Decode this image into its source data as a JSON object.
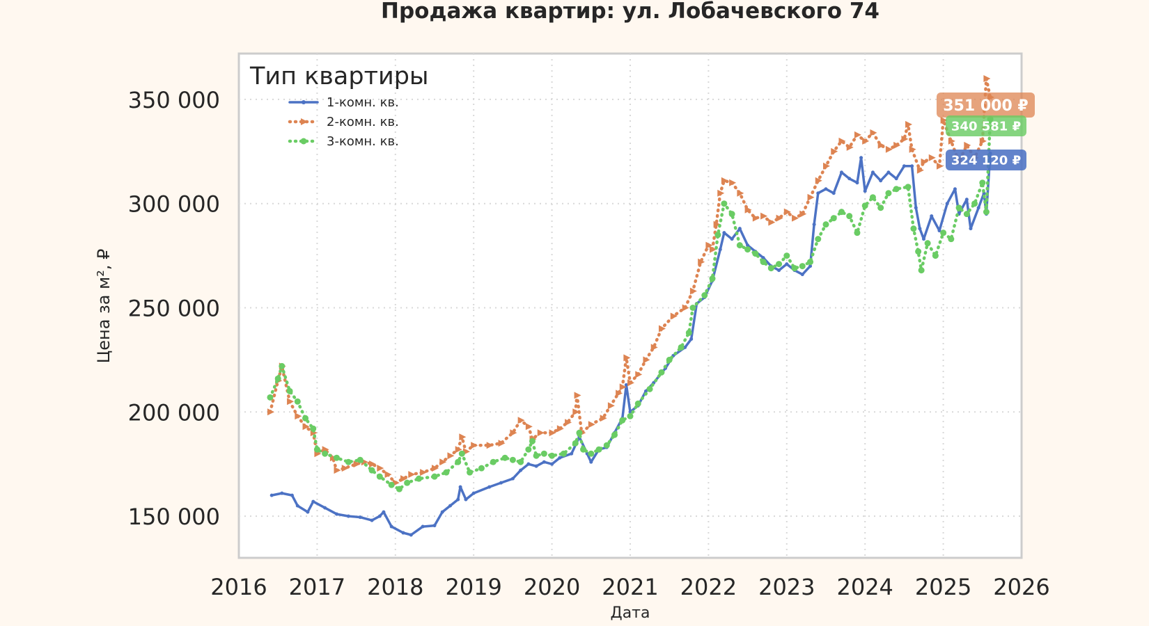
{
  "chart_data": {
    "type": "line",
    "title": "Продажа квартир: ул. Лобачевского 74",
    "xlabel": "Дата",
    "ylabel": "Цена за м², ₽",
    "xlim": [
      2016.0,
      2026.0
    ],
    "ylim": [
      130000,
      372000
    ],
    "x_ticks": [
      2016,
      2017,
      2018,
      2019,
      2020,
      2021,
      2022,
      2023,
      2024,
      2025,
      2026
    ],
    "x_tick_labels": [
      "2016",
      "2017",
      "2018",
      "2019",
      "2020",
      "2021",
      "2022",
      "2023",
      "2024",
      "2025",
      "2026"
    ],
    "y_ticks": [
      150000,
      200000,
      250000,
      300000,
      350000
    ],
    "y_tick_labels": [
      "150 000",
      "200 000",
      "250 000",
      "300 000",
      "350 000"
    ],
    "grid": true,
    "legend": {
      "title": "Тип квартиры",
      "position": "top-left"
    },
    "series": [
      {
        "name": "1-комн. кв.",
        "color": "#4c72c4",
        "style": "solid",
        "marker": "dot",
        "end_label": "324 120 ₽",
        "points": [
          [
            2016.42,
            160000
          ],
          [
            2016.55,
            161000
          ],
          [
            2016.68,
            160000
          ],
          [
            2016.75,
            155000
          ],
          [
            2016.88,
            152000
          ],
          [
            2016.95,
            157000
          ],
          [
            2017.1,
            154000
          ],
          [
            2017.25,
            151000
          ],
          [
            2017.4,
            150000
          ],
          [
            2017.55,
            149500
          ],
          [
            2017.7,
            148000
          ],
          [
            2017.8,
            150000
          ],
          [
            2017.85,
            152000
          ],
          [
            2017.95,
            145000
          ],
          [
            2018.1,
            142000
          ],
          [
            2018.2,
            141000
          ],
          [
            2018.35,
            145000
          ],
          [
            2018.5,
            145500
          ],
          [
            2018.6,
            152000
          ],
          [
            2018.7,
            155000
          ],
          [
            2018.8,
            158000
          ],
          [
            2018.83,
            164000
          ],
          [
            2018.9,
            158000
          ],
          [
            2019.0,
            161000
          ],
          [
            2019.2,
            164000
          ],
          [
            2019.35,
            166000
          ],
          [
            2019.5,
            168000
          ],
          [
            2019.6,
            172000
          ],
          [
            2019.7,
            175000
          ],
          [
            2019.8,
            174000
          ],
          [
            2019.9,
            176000
          ],
          [
            2020.0,
            175000
          ],
          [
            2020.1,
            178000
          ],
          [
            2020.25,
            180000
          ],
          [
            2020.35,
            188000
          ],
          [
            2020.45,
            180000
          ],
          [
            2020.5,
            176000
          ],
          [
            2020.6,
            182000
          ],
          [
            2020.7,
            183000
          ],
          [
            2020.8,
            190000
          ],
          [
            2020.9,
            197000
          ],
          [
            2020.95,
            213000
          ],
          [
            2021.0,
            200000
          ],
          [
            2021.1,
            203000
          ],
          [
            2021.2,
            210000
          ],
          [
            2021.3,
            214000
          ],
          [
            2021.45,
            221000
          ],
          [
            2021.55,
            227000
          ],
          [
            2021.7,
            231000
          ],
          [
            2021.78,
            235000
          ],
          [
            2021.85,
            252000
          ],
          [
            2021.95,
            255000
          ],
          [
            2022.05,
            263000
          ],
          [
            2022.15,
            278000
          ],
          [
            2022.2,
            286000
          ],
          [
            2022.3,
            283000
          ],
          [
            2022.4,
            288000
          ],
          [
            2022.5,
            280000
          ],
          [
            2022.6,
            277000
          ],
          [
            2022.7,
            274000
          ],
          [
            2022.8,
            270000
          ],
          [
            2022.9,
            268000
          ],
          [
            2023.0,
            271000
          ],
          [
            2023.1,
            268000
          ],
          [
            2023.2,
            266000
          ],
          [
            2023.3,
            270000
          ],
          [
            2023.35,
            290000
          ],
          [
            2023.4,
            305000
          ],
          [
            2023.5,
            307000
          ],
          [
            2023.6,
            305000
          ],
          [
            2023.7,
            315000
          ],
          [
            2023.8,
            312000
          ],
          [
            2023.9,
            310000
          ],
          [
            2023.95,
            322000
          ],
          [
            2024.0,
            306000
          ],
          [
            2024.1,
            315000
          ],
          [
            2024.2,
            311000
          ],
          [
            2024.3,
            315000
          ],
          [
            2024.4,
            312000
          ],
          [
            2024.5,
            318000
          ],
          [
            2024.6,
            318000
          ],
          [
            2024.65,
            298000
          ],
          [
            2024.7,
            288000
          ],
          [
            2024.75,
            283000
          ],
          [
            2024.85,
            294000
          ],
          [
            2024.95,
            287000
          ],
          [
            2025.05,
            300000
          ],
          [
            2025.15,
            307000
          ],
          [
            2025.2,
            295000
          ],
          [
            2025.3,
            302000
          ],
          [
            2025.35,
            288000
          ],
          [
            2025.45,
            298000
          ],
          [
            2025.52,
            305000
          ],
          [
            2025.55,
            295000
          ],
          [
            2025.6,
            324120
          ]
        ]
      },
      {
        "name": "2-комн. кв.",
        "color": "#dd8452",
        "style": "dotted",
        "marker": "triangle",
        "end_label": "351 000 ₽",
        "points": [
          [
            2016.4,
            200000
          ],
          [
            2016.5,
            215000
          ],
          [
            2016.55,
            222000
          ],
          [
            2016.65,
            205000
          ],
          [
            2016.75,
            198000
          ],
          [
            2016.85,
            193000
          ],
          [
            2016.95,
            190000
          ],
          [
            2017.0,
            180000
          ],
          [
            2017.1,
            182000
          ],
          [
            2017.2,
            178000
          ],
          [
            2017.25,
            172000
          ],
          [
            2017.35,
            173000
          ],
          [
            2017.5,
            175000
          ],
          [
            2017.6,
            176000
          ],
          [
            2017.7,
            175000
          ],
          [
            2017.8,
            173000
          ],
          [
            2017.9,
            170000
          ],
          [
            2018.0,
            166000
          ],
          [
            2018.1,
            168000
          ],
          [
            2018.2,
            170000
          ],
          [
            2018.35,
            171000
          ],
          [
            2018.5,
            173000
          ],
          [
            2018.6,
            176000
          ],
          [
            2018.7,
            179000
          ],
          [
            2018.8,
            182000
          ],
          [
            2018.85,
            188000
          ],
          [
            2018.9,
            181000
          ],
          [
            2019.0,
            184000
          ],
          [
            2019.2,
            184000
          ],
          [
            2019.35,
            185000
          ],
          [
            2019.5,
            190000
          ],
          [
            2019.6,
            196000
          ],
          [
            2019.7,
            193000
          ],
          [
            2019.75,
            187000
          ],
          [
            2019.85,
            190000
          ],
          [
            2020.0,
            190000
          ],
          [
            2020.1,
            192000
          ],
          [
            2020.2,
            195000
          ],
          [
            2020.3,
            200000
          ],
          [
            2020.32,
            208000
          ],
          [
            2020.38,
            190000
          ],
          [
            2020.5,
            194000
          ],
          [
            2020.65,
            197000
          ],
          [
            2020.75,
            203000
          ],
          [
            2020.85,
            209000
          ],
          [
            2020.9,
            212000
          ],
          [
            2020.95,
            226000
          ],
          [
            2021.0,
            214000
          ],
          [
            2021.1,
            218000
          ],
          [
            2021.2,
            225000
          ],
          [
            2021.3,
            231000
          ],
          [
            2021.4,
            240000
          ],
          [
            2021.55,
            246000
          ],
          [
            2021.7,
            250000
          ],
          [
            2021.8,
            258000
          ],
          [
            2021.9,
            272000
          ],
          [
            2022.0,
            280000
          ],
          [
            2022.05,
            278000
          ],
          [
            2022.1,
            290000
          ],
          [
            2022.15,
            305000
          ],
          [
            2022.2,
            311000
          ],
          [
            2022.3,
            310000
          ],
          [
            2022.4,
            305000
          ],
          [
            2022.5,
            297000
          ],
          [
            2022.6,
            293000
          ],
          [
            2022.7,
            294000
          ],
          [
            2022.8,
            291000
          ],
          [
            2022.9,
            293000
          ],
          [
            2023.0,
            296000
          ],
          [
            2023.1,
            293000
          ],
          [
            2023.2,
            295000
          ],
          [
            2023.3,
            303000
          ],
          [
            2023.4,
            311000
          ],
          [
            2023.5,
            318000
          ],
          [
            2023.6,
            325000
          ],
          [
            2023.7,
            330000
          ],
          [
            2023.8,
            327000
          ],
          [
            2023.9,
            333000
          ],
          [
            2024.0,
            330000
          ],
          [
            2024.1,
            334000
          ],
          [
            2024.2,
            328000
          ],
          [
            2024.3,
            326000
          ],
          [
            2024.4,
            328000
          ],
          [
            2024.5,
            331000
          ],
          [
            2024.55,
            338000
          ],
          [
            2024.6,
            326000
          ],
          [
            2024.7,
            316000
          ],
          [
            2024.75,
            320000
          ],
          [
            2024.85,
            322000
          ],
          [
            2024.95,
            318000
          ],
          [
            2025.0,
            340000
          ],
          [
            2025.1,
            330000
          ],
          [
            2025.2,
            320000
          ],
          [
            2025.3,
            328000
          ],
          [
            2025.4,
            322000
          ],
          [
            2025.5,
            330000
          ],
          [
            2025.55,
            360000
          ],
          [
            2025.6,
            351000
          ]
        ]
      },
      {
        "name": "3-комн. кв.",
        "color": "#6acc64",
        "style": "dotted",
        "marker": "circle",
        "end_label": "340 581 ₽",
        "points": [
          [
            2016.4,
            207000
          ],
          [
            2016.5,
            216000
          ],
          [
            2016.55,
            222000
          ],
          [
            2016.65,
            210000
          ],
          [
            2016.75,
            205000
          ],
          [
            2016.85,
            197000
          ],
          [
            2016.95,
            192000
          ],
          [
            2017.0,
            182000
          ],
          [
            2017.1,
            180000
          ],
          [
            2017.25,
            178000
          ],
          [
            2017.4,
            176000
          ],
          [
            2017.55,
            177000
          ],
          [
            2017.7,
            172000
          ],
          [
            2017.8,
            169000
          ],
          [
            2017.95,
            165000
          ],
          [
            2018.05,
            163000
          ],
          [
            2018.15,
            166000
          ],
          [
            2018.3,
            168000
          ],
          [
            2018.5,
            169000
          ],
          [
            2018.65,
            171000
          ],
          [
            2018.8,
            176000
          ],
          [
            2018.85,
            180000
          ],
          [
            2018.95,
            171000
          ],
          [
            2019.1,
            173000
          ],
          [
            2019.25,
            176000
          ],
          [
            2019.4,
            178000
          ],
          [
            2019.5,
            177000
          ],
          [
            2019.6,
            176000
          ],
          [
            2019.7,
            182000
          ],
          [
            2019.75,
            186000
          ],
          [
            2019.8,
            179000
          ],
          [
            2019.9,
            180000
          ],
          [
            2020.0,
            179000
          ],
          [
            2020.15,
            180000
          ],
          [
            2020.3,
            185000
          ],
          [
            2020.35,
            190000
          ],
          [
            2020.4,
            182000
          ],
          [
            2020.5,
            180000
          ],
          [
            2020.6,
            182000
          ],
          [
            2020.7,
            184000
          ],
          [
            2020.8,
            189000
          ],
          [
            2020.9,
            196000
          ],
          [
            2021.0,
            198000
          ],
          [
            2021.1,
            204000
          ],
          [
            2021.25,
            211000
          ],
          [
            2021.4,
            219000
          ],
          [
            2021.5,
            225000
          ],
          [
            2021.65,
            231000
          ],
          [
            2021.75,
            238000
          ],
          [
            2021.8,
            250000
          ],
          [
            2021.95,
            256000
          ],
          [
            2022.05,
            264000
          ],
          [
            2022.12,
            285000
          ],
          [
            2022.2,
            300000
          ],
          [
            2022.3,
            295000
          ],
          [
            2022.4,
            280000
          ],
          [
            2022.5,
            278000
          ],
          [
            2022.6,
            276000
          ],
          [
            2022.7,
            272000
          ],
          [
            2022.8,
            269000
          ],
          [
            2022.9,
            271000
          ],
          [
            2023.0,
            275000
          ],
          [
            2023.1,
            269000
          ],
          [
            2023.2,
            270000
          ],
          [
            2023.3,
            272000
          ],
          [
            2023.4,
            283000
          ],
          [
            2023.5,
            290000
          ],
          [
            2023.6,
            293000
          ],
          [
            2023.7,
            296000
          ],
          [
            2023.8,
            294000
          ],
          [
            2023.9,
            286000
          ],
          [
            2024.0,
            299000
          ],
          [
            2024.1,
            303000
          ],
          [
            2024.2,
            298000
          ],
          [
            2024.3,
            305000
          ],
          [
            2024.4,
            307000
          ],
          [
            2024.55,
            308000
          ],
          [
            2024.62,
            288000
          ],
          [
            2024.68,
            277000
          ],
          [
            2024.72,
            268000
          ],
          [
            2024.8,
            281000
          ],
          [
            2024.9,
            275000
          ],
          [
            2025.0,
            286000
          ],
          [
            2025.1,
            283000
          ],
          [
            2025.2,
            298000
          ],
          [
            2025.3,
            295000
          ],
          [
            2025.4,
            300000
          ],
          [
            2025.5,
            310000
          ],
          [
            2025.55,
            296000
          ],
          [
            2025.6,
            340581
          ]
        ]
      }
    ]
  }
}
